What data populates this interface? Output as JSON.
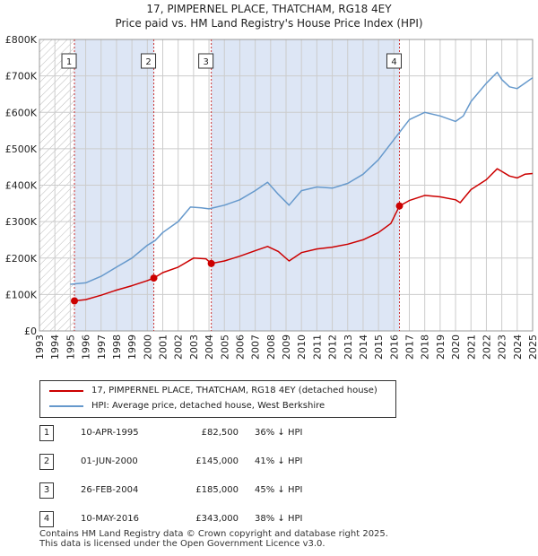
{
  "title_line1": "17, PIMPERNEL PLACE, THATCHAM, RG18 4EY",
  "title_line2": "Price paid vs. HM Land Registry's House Price Index (HPI)",
  "colors": {
    "property": "#cc0000",
    "hpi": "#6699cc",
    "shade": "#dde6f5",
    "grid": "#cccccc",
    "marker_line": "#cc3333"
  },
  "chart_data": {
    "type": "line",
    "xlim": [
      1993,
      2025
    ],
    "ylim": [
      0,
      800000
    ],
    "x_ticks": [
      "1993",
      "1994",
      "1995",
      "1996",
      "1997",
      "1998",
      "1999",
      "2000",
      "2001",
      "2002",
      "2003",
      "2004",
      "2005",
      "2006",
      "2007",
      "2008",
      "2009",
      "2010",
      "2011",
      "2012",
      "2013",
      "2014",
      "2015",
      "2016",
      "2017",
      "2018",
      "2019",
      "2020",
      "2021",
      "2022",
      "2023",
      "2024",
      "2025"
    ],
    "y_ticks": [
      {
        "value": 0,
        "label": "£0"
      },
      {
        "value": 100000,
        "label": "£100K"
      },
      {
        "value": 200000,
        "label": "£200K"
      },
      {
        "value": 300000,
        "label": "£300K"
      },
      {
        "value": 400000,
        "label": "£400K"
      },
      {
        "value": 500000,
        "label": "£500K"
      },
      {
        "value": 600000,
        "label": "£600K"
      },
      {
        "value": 700000,
        "label": "£700K"
      },
      {
        "value": 800000,
        "label": "£800K"
      }
    ],
    "data_start": 1995.27,
    "series": [
      {
        "name": "17, PIMPERNEL PLACE, THATCHAM, RG18 4EY (detached house)",
        "color": "#cc0000",
        "x": [
          1995.27,
          1996.0,
          1997.0,
          1998.0,
          1999.0,
          2000.0,
          2000.42,
          2001.0,
          2002.0,
          2003.0,
          2003.8,
          2004.15,
          2005.0,
          2006.0,
          2007.0,
          2007.8,
          2008.5,
          2009.2,
          2010.0,
          2011.0,
          2012.0,
          2013.0,
          2014.0,
          2015.0,
          2015.8,
          2016.36,
          2017.0,
          2018.0,
          2019.0,
          2020.0,
          2020.3,
          2021.0,
          2022.0,
          2022.7,
          2023.0,
          2023.5,
          2024.0,
          2024.5,
          2025.0
        ],
        "y": [
          82500,
          86000,
          98000,
          112000,
          124000,
          138000,
          145000,
          160000,
          175000,
          200000,
          198000,
          185000,
          192000,
          205000,
          220000,
          232000,
          218000,
          192000,
          215000,
          225000,
          230000,
          238000,
          250000,
          270000,
          295000,
          343000,
          358000,
          372000,
          368000,
          360000,
          352000,
          388000,
          415000,
          445000,
          438000,
          425000,
          420000,
          430000,
          432000
        ]
      },
      {
        "name": "HPI: Average price, detached house, West Berkshire",
        "color": "#6699cc",
        "x": [
          1995.0,
          1996.0,
          1997.0,
          1998.0,
          1999.0,
          2000.0,
          2000.5,
          2001.0,
          2002.0,
          2002.8,
          2003.5,
          2004.0,
          2005.0,
          2006.0,
          2007.0,
          2007.8,
          2008.5,
          2009.2,
          2010.0,
          2011.0,
          2012.0,
          2013.0,
          2014.0,
          2015.0,
          2016.0,
          2017.0,
          2018.0,
          2019.0,
          2020.0,
          2020.5,
          2021.0,
          2022.0,
          2022.7,
          2023.0,
          2023.5,
          2024.0,
          2024.5,
          2025.0
        ],
        "y": [
          128000,
          132000,
          150000,
          175000,
          200000,
          235000,
          248000,
          270000,
          300000,
          340000,
          338000,
          335000,
          345000,
          360000,
          385000,
          408000,
          375000,
          345000,
          385000,
          395000,
          392000,
          405000,
          430000,
          470000,
          525000,
          580000,
          600000,
          590000,
          575000,
          590000,
          630000,
          680000,
          710000,
          690000,
          670000,
          665000,
          680000,
          695000
        ]
      }
    ],
    "sales": [
      {
        "id": "1",
        "year": 1995.27,
        "price": 82500
      },
      {
        "id": "2",
        "year": 2000.42,
        "price": 145000
      },
      {
        "id": "3",
        "year": 2004.15,
        "price": 185000
      },
      {
        "id": "4",
        "year": 2016.36,
        "price": 343000
      }
    ]
  },
  "legend": {
    "property_label": "17, PIMPERNEL PLACE, THATCHAM, RG18 4EY (detached house)",
    "hpi_label": "HPI: Average price, detached house, West Berkshire"
  },
  "sales_table": [
    {
      "num": "1",
      "date": "10-APR-1995",
      "price": "£82,500",
      "hpi": "36% ↓ HPI"
    },
    {
      "num": "2",
      "date": "01-JUN-2000",
      "price": "£145,000",
      "hpi": "41% ↓ HPI"
    },
    {
      "num": "3",
      "date": "26-FEB-2004",
      "price": "£185,000",
      "hpi": "45% ↓ HPI"
    },
    {
      "num": "4",
      "date": "10-MAY-2016",
      "price": "£343,000",
      "hpi": "38% ↓ HPI"
    }
  ],
  "footer": {
    "line1": "Contains HM Land Registry data © Crown copyright and database right 2025.",
    "line2": "This data is licensed under the Open Government Licence v3.0."
  }
}
